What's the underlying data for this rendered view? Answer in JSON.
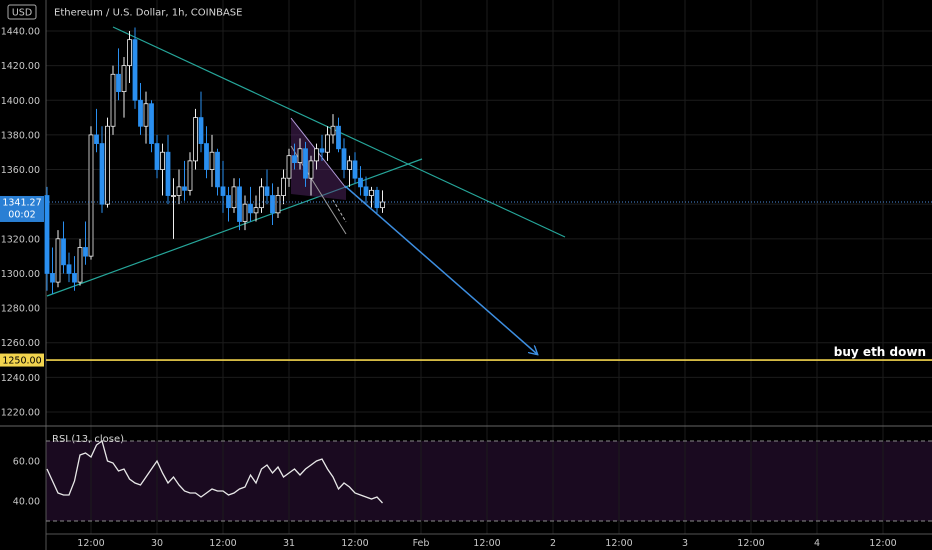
{
  "chart_data": [
    {
      "type": "candlestick",
      "title": "Ethereum / U.S. Dollar, 1h, COINBASE",
      "currency_badge": "USD",
      "y_ticks": [
        "1440.00",
        "1420.00",
        "1400.00",
        "1380.00",
        "1360.00",
        "1340.00",
        "1320.00",
        "1300.00",
        "1280.00",
        "1260.00",
        "1240.00",
        "1220.00"
      ],
      "y_tick_values": [
        1440,
        1420,
        1400,
        1380,
        1360,
        1340,
        1320,
        1300,
        1280,
        1260,
        1240,
        1220
      ],
      "ylim": [
        1206,
        1450
      ],
      "x_ticks": [
        "12:00",
        "30",
        "12:00",
        "31",
        "12:00",
        "Feb",
        "12:00",
        "2",
        "12:00",
        "3",
        "12:00",
        "4",
        "12:00"
      ],
      "x_tick_hours": [
        12,
        24,
        36,
        48,
        60,
        72,
        84,
        96,
        108,
        120,
        132,
        144,
        156
      ],
      "x_range_hours": [
        4,
        161
      ],
      "last_price": {
        "label": "1341.27",
        "value": 1341.27,
        "countdown": "00:02"
      },
      "target_level": {
        "label": "1250.00",
        "value": 1250
      },
      "annotation": "buy eth down",
      "ohlc_start_hour": 4,
      "ohlc": [
        [
          1345,
          1350,
          1290,
          1300
        ],
        [
          1300,
          1315,
          1288,
          1295
        ],
        [
          1295,
          1325,
          1292,
          1320
        ],
        [
          1320,
          1330,
          1300,
          1305
        ],
        [
          1305,
          1312,
          1295,
          1300
        ],
        [
          1300,
          1310,
          1290,
          1295
        ],
        [
          1295,
          1320,
          1293,
          1315
        ],
        [
          1315,
          1330,
          1305,
          1310
        ],
        [
          1310,
          1385,
          1308,
          1380
        ],
        [
          1380,
          1395,
          1370,
          1375
        ],
        [
          1375,
          1385,
          1335,
          1340
        ],
        [
          1340,
          1390,
          1338,
          1385
        ],
        [
          1385,
          1420,
          1380,
          1415
        ],
        [
          1415,
          1430,
          1400,
          1405
        ],
        [
          1405,
          1425,
          1390,
          1420
        ],
        [
          1420,
          1440,
          1410,
          1435
        ],
        [
          1435,
          1442,
          1395,
          1400
        ],
        [
          1400,
          1410,
          1380,
          1385
        ],
        [
          1385,
          1405,
          1375,
          1398
        ],
        [
          1398,
          1400,
          1370,
          1375
        ],
        [
          1375,
          1380,
          1355,
          1360
        ],
        [
          1360,
          1375,
          1345,
          1370
        ],
        [
          1370,
          1380,
          1340,
          1345
        ],
        [
          1345,
          1355,
          1320,
          1345
        ],
        [
          1345,
          1360,
          1340,
          1350
        ],
        [
          1350,
          1365,
          1342,
          1348
        ],
        [
          1348,
          1370,
          1345,
          1365
        ],
        [
          1365,
          1395,
          1360,
          1390
        ],
        [
          1390,
          1405,
          1370,
          1375
        ],
        [
          1375,
          1385,
          1355,
          1360
        ],
        [
          1360,
          1380,
          1350,
          1370
        ],
        [
          1370,
          1372,
          1345,
          1350
        ],
        [
          1350,
          1365,
          1335,
          1345
        ],
        [
          1345,
          1350,
          1330,
          1338
        ],
        [
          1338,
          1355,
          1335,
          1350
        ],
        [
          1350,
          1355,
          1325,
          1330
        ],
        [
          1330,
          1345,
          1325,
          1340
        ],
        [
          1340,
          1350,
          1330,
          1335
        ],
        [
          1335,
          1345,
          1330,
          1338
        ],
        [
          1338,
          1355,
          1335,
          1350
        ],
        [
          1350,
          1360,
          1340,
          1345
        ],
        [
          1345,
          1352,
          1328,
          1335
        ],
        [
          1335,
          1350,
          1332,
          1345
        ],
        [
          1345,
          1360,
          1340,
          1355
        ],
        [
          1355,
          1372,
          1350,
          1368
        ],
        [
          1368,
          1375,
          1360,
          1364
        ],
        [
          1364,
          1378,
          1360,
          1372
        ],
        [
          1372,
          1376,
          1350,
          1355
        ],
        [
          1355,
          1368,
          1345,
          1365
        ],
        [
          1365,
          1375,
          1360,
          1372
        ],
        [
          1372,
          1380,
          1365,
          1370
        ],
        [
          1370,
          1385,
          1365,
          1380
        ],
        [
          1380,
          1392,
          1375,
          1385
        ],
        [
          1385,
          1390,
          1370,
          1372
        ],
        [
          1372,
          1378,
          1355,
          1360
        ],
        [
          1360,
          1368,
          1350,
          1365
        ],
        [
          1365,
          1370,
          1352,
          1355
        ],
        [
          1355,
          1362,
          1345,
          1350
        ],
        [
          1350,
          1356,
          1340,
          1345
        ],
        [
          1345,
          1350,
          1338,
          1348
        ],
        [
          1348,
          1350,
          1335,
          1338
        ],
        [
          1338,
          1348,
          1335,
          1341.27
        ]
      ]
    },
    {
      "type": "line",
      "title": "RSI (13, close)",
      "y_ticks": [
        "60.00",
        "40.00"
      ],
      "y_tick_values": [
        60,
        40
      ],
      "ylim": [
        24,
        76
      ],
      "bands": [
        70,
        30
      ],
      "x_start_hour": 4,
      "values": [
        56,
        50,
        44,
        43,
        43,
        50,
        63,
        64,
        62,
        68,
        70,
        60,
        59,
        55,
        56,
        51,
        49,
        48,
        52,
        56,
        60,
        54,
        49,
        52,
        48,
        45,
        44,
        44,
        42,
        44,
        46,
        45,
        45,
        43,
        44,
        46,
        47,
        53,
        49,
        56,
        58,
        54,
        57,
        52,
        54,
        56,
        53,
        56,
        58,
        60,
        61,
        56,
        52,
        46,
        49,
        47,
        44,
        43,
        42,
        41,
        42,
        39
      ]
    }
  ]
}
